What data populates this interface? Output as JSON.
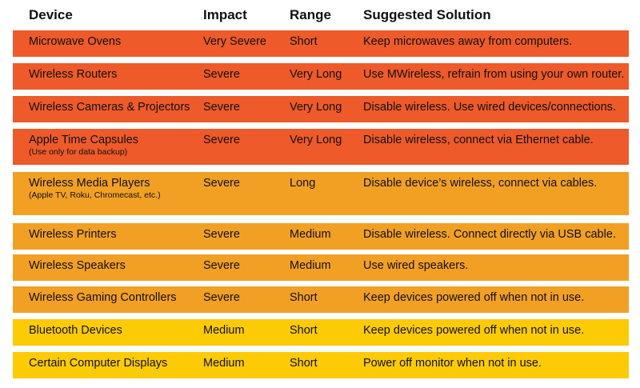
{
  "headers": {
    "device": "Device",
    "impact": "Impact",
    "range": "Range",
    "solution": "Suggested Solution"
  },
  "colors": {
    "red": "#EE5A29",
    "orange": "#F2A024",
    "yellow": "#FDCB05"
  },
  "rows": [
    {
      "device": "Microwave Ovens",
      "note": "",
      "impact": "Very Severe",
      "range": "Short",
      "solution": "Keep microwaves away from computers.",
      "color": "red"
    },
    {
      "device": "Wireless Routers",
      "note": "",
      "impact": "Severe",
      "range": "Very Long",
      "solution": "Use MWireless, refrain from using your own router.",
      "color": "red"
    },
    {
      "device": "Wireless Cameras & Projectors",
      "note": "",
      "impact": "Severe",
      "range": "Very Long",
      "solution": "Disable wireless. Use wired devices/connections.",
      "color": "red"
    },
    {
      "device": "Apple Time Capsules",
      "note": "(Use only for data backup)",
      "impact": "Severe",
      "range": "Very Long",
      "solution": "Disable wireless, connect via Ethernet cable.",
      "color": "red"
    },
    {
      "device": "Wireless Media Players",
      "note": "(Apple TV, Roku, Chromecast, etc.)",
      "impact": "Severe",
      "range": "Long",
      "solution": "Disable device’s wireless, connect via cables.",
      "color": "orange"
    },
    {
      "device": "Wireless Printers",
      "note": "",
      "impact": "Severe",
      "range": "Medium",
      "solution": "Disable wireless. Connect directly via USB cable.",
      "color": "orange"
    },
    {
      "device": "Wireless Speakers",
      "note": "",
      "impact": "Severe",
      "range": "Medium",
      "solution": "Use wired speakers.",
      "color": "orange"
    },
    {
      "device": "Wireless Gaming Controllers",
      "note": "",
      "impact": "Severe",
      "range": "Short",
      "solution": "Keep devices powered off when not in use.",
      "color": "orange"
    },
    {
      "device": "Bluetooth Devices",
      "note": "",
      "impact": "Medium",
      "range": "Short",
      "solution": "Keep devices powered off when not in use.",
      "color": "yellow"
    },
    {
      "device": "Certain Computer Displays",
      "note": "",
      "impact": "Medium",
      "range": "Short",
      "solution": "Power off monitor when not in use.",
      "color": "yellow"
    }
  ]
}
